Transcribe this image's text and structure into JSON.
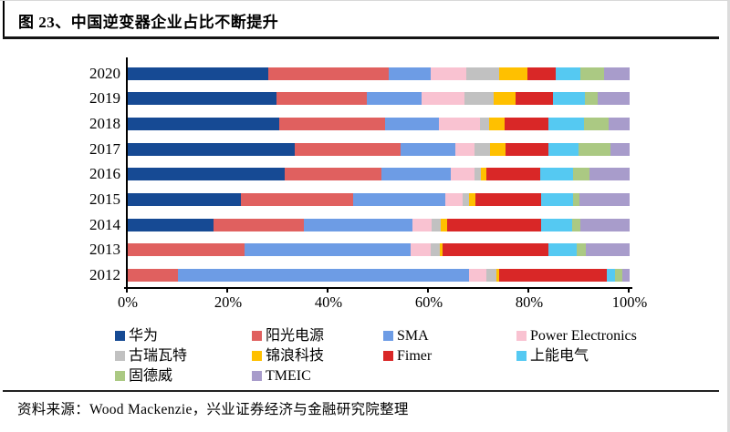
{
  "figure": {
    "title": "图 23、中国逆变器企业占比不断提升",
    "source": "资料来源：Wood Mackenzie，兴业证券经济与金融研究院整理"
  },
  "chart_data": {
    "type": "bar",
    "orientation": "horizontal",
    "stacked": true,
    "unit": "percent",
    "title": "中国逆变器企业占比不断提升",
    "categories": [
      "2020",
      "2019",
      "2018",
      "2017",
      "2016",
      "2015",
      "2014",
      "2013",
      "2012"
    ],
    "x_ticks": [
      "0%",
      "20%",
      "40%",
      "60%",
      "80%",
      "100%"
    ],
    "xlim": [
      0,
      100
    ],
    "legend_position": "bottom",
    "grid": false,
    "series": [
      {
        "name": "华为",
        "color": "#164A94",
        "values": [
          28.0,
          29.7,
          30.1,
          33.3,
          31.3,
          22.6,
          17.1,
          0.0,
          0.0
        ]
      },
      {
        "name": "阳光电源",
        "color": "#E0605F",
        "values": [
          24.0,
          18.0,
          21.2,
          21.1,
          19.3,
          22.4,
          18.0,
          23.2,
          10.0
        ]
      },
      {
        "name": "SMA",
        "color": "#6D9CE5",
        "values": [
          8.4,
          10.9,
          10.7,
          10.9,
          13.7,
          18.2,
          21.7,
          33.1,
          58.0
        ]
      },
      {
        "name": "Power Electronics",
        "color": "#F9C2D1",
        "values": [
          7.0,
          8.5,
          8.1,
          3.8,
          4.8,
          3.6,
          3.8,
          4.0,
          3.5
        ]
      },
      {
        "name": "古瑞瓦特",
        "color": "#C1C1C1",
        "values": [
          6.6,
          5.8,
          1.9,
          3.1,
          1.2,
          1.2,
          1.8,
          1.9,
          2.0
        ]
      },
      {
        "name": "锦浪科技",
        "color": "#FFC000",
        "values": [
          5.7,
          4.3,
          3.1,
          3.0,
          1.2,
          1.3,
          1.3,
          0.5,
          0.5
        ]
      },
      {
        "name": "Fimer",
        "color": "#D92727",
        "values": [
          5.5,
          7.5,
          8.8,
          8.7,
          10.7,
          13.0,
          18.7,
          21.1,
          21.5
        ]
      },
      {
        "name": "上能电气",
        "color": "#55C9F2",
        "values": [
          5.0,
          6.4,
          7.0,
          6.0,
          6.5,
          6.4,
          6.2,
          5.6,
          1.5
        ]
      },
      {
        "name": "固德威",
        "color": "#ABC983",
        "values": [
          4.8,
          2.6,
          5.0,
          6.2,
          3.4,
          1.4,
          1.6,
          1.8,
          1.5
        ]
      },
      {
        "name": "TMEIC",
        "color": "#A89CCB",
        "values": [
          5.0,
          6.3,
          4.1,
          3.9,
          7.9,
          9.9,
          9.8,
          8.8,
          1.5
        ]
      }
    ]
  }
}
